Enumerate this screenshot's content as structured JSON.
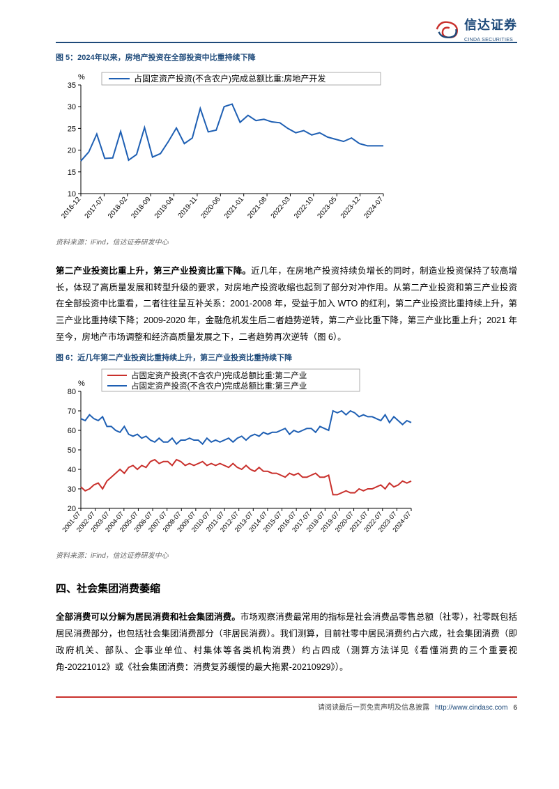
{
  "logo": {
    "cn": "信达证券",
    "en": "CINDA SECURITIES"
  },
  "figure5": {
    "title": "图 5：2024年以来，房地产投资在全部投资中比重持续下降",
    "source": "资料来源：iFind，信达证券研发中心",
    "type": "line",
    "legend_label": "占固定资产投资(不含农户)完成总额比重:房地产开发",
    "legend_color": "#1e5fb3",
    "y_label": "%",
    "ylim": [
      10,
      35
    ],
    "ytick_step": 5,
    "x_categories": [
      "2016-12",
      "2017-07",
      "2018-02",
      "2018-09",
      "2019-04",
      "2019-11",
      "2020-06",
      "2021-01",
      "2021-08",
      "2022-03",
      "2022-10",
      "2023-05",
      "2023-12",
      "2024-07"
    ],
    "line_color": "#1e5fb3",
    "line_width": 2,
    "background_color": "#ffffff",
    "grid_color": "#999999",
    "series": [
      17.5,
      19.6,
      23.7,
      18.1,
      18.2,
      24.3,
      17.7,
      19.0,
      25.2,
      18.4,
      19.2,
      22.0,
      25.1,
      21.5,
      22.8,
      29.6,
      24.2,
      24.6,
      30.0,
      30.6,
      26.4,
      28.0,
      26.8,
      27.1,
      26.5,
      26.3,
      25.0,
      24.0,
      24.5,
      23.5,
      24.0,
      23.0,
      22.5,
      22.0,
      22.8,
      21.5,
      21.0,
      21.0,
      21.0
    ]
  },
  "para1_bold": "第二产业投资比重上升，第三产业投资比重下降。",
  "para1_rest": "近几年，在房地产投资持续负增长的同时，制造业投资保持了较高增长，体现了高质量发展和转型升级的要求，对房地产投资收缩也起到了部分对冲作用。从第二产业投资和第三产业投资在全部投资中比重看，二者往往呈互补关系：2001-2008 年，受益于加入 WTO 的红利，第二产业投资比重持续上升，第三产业比重持续下降；2009-2020 年，金融危机发生后二者趋势逆转，第二产业比重下降，第三产业比重上升；2021 年至今，房地产市场调整和经济高质量发展之下，二者趋势再次逆转（图 6）。",
  "figure6": {
    "title": "图 6：近几年第二产业投资比重持续上升，第三产业投资比重持续下降",
    "source": "资料来源：iFind，信达证券研发中心",
    "type": "line",
    "legend1_label": "占固定资产投资(不含农户)完成总额比重:第二产业",
    "legend2_label": "占固定资产投资(不含农户)完成总额比重:第三产业",
    "legend1_color": "#c9302c",
    "legend2_color": "#1e5fb3",
    "y_label": "%",
    "ylim": [
      20,
      80
    ],
    "ytick_step": 10,
    "x_categories": [
      "2001-07",
      "2002-07",
      "2003-07",
      "2004-07",
      "2005-07",
      "2006-07",
      "2007-07",
      "2008-07",
      "2009-07",
      "2010-07",
      "2011-07",
      "2012-07",
      "2013-07",
      "2014-07",
      "2015-07",
      "2016-07",
      "2017-07",
      "2018-07",
      "2019-07",
      "2020-07",
      "2021-07",
      "2022-07",
      "2023-07",
      "2024-07"
    ],
    "line_width": 2,
    "background_color": "#ffffff",
    "series_red": [
      31,
      29,
      30,
      32,
      33,
      30,
      34,
      36,
      38,
      40,
      38,
      41,
      42,
      40,
      42,
      41,
      44,
      45,
      43,
      44,
      44,
      42,
      45,
      44,
      42,
      43,
      42,
      43,
      44,
      42,
      43,
      42,
      43,
      42,
      41,
      43,
      41,
      40,
      42,
      40,
      39,
      41,
      39,
      39,
      38,
      38,
      37,
      36,
      38,
      37,
      38,
      36,
      36,
      37,
      38,
      36,
      36,
      37,
      27,
      27,
      28,
      29,
      28,
      28,
      30,
      29,
      30,
      30,
      31,
      32,
      30,
      33,
      31,
      32,
      34,
      33,
      34
    ],
    "series_blue": [
      66,
      65,
      68,
      66,
      65,
      67,
      62,
      62,
      60,
      59,
      62,
      58,
      57,
      58,
      56,
      57,
      55,
      54,
      56,
      54,
      54,
      56,
      53,
      55,
      55,
      56,
      55,
      55,
      53,
      56,
      54,
      55,
      54,
      55,
      56,
      54,
      56,
      57,
      55,
      57,
      58,
      57,
      59,
      58,
      59,
      59,
      60,
      61,
      58,
      60,
      59,
      60,
      61,
      61,
      59,
      62,
      61,
      60,
      70,
      69,
      70,
      68,
      70,
      69,
      67,
      68,
      67,
      67,
      66,
      65,
      68,
      64,
      67,
      65,
      63,
      65,
      64
    ]
  },
  "section4_title": "四、社会集团消费萎缩",
  "para2_bold": "全部消费可以分解为居民消费和社会集团消费。",
  "para2_rest": "市场观察消费最常用的指标是社会消费品零售总额（社零），社零既包括居民消费部分，也包括社会集团消费部分（非居民消费）。我们测算，目前社零中居民消费约占六成，社会集团消费（即政府机关、部队、企事业单位、村集体等各类机构消费）约占四成（测算方法详见《看懂消费的三个重要视角-20221012》或《社会集团消费：消费复苏缓慢的最大拖累-20210929》）。",
  "footer": {
    "text": "请阅读最后一页免责声明及信息披露",
    "url": "http://www.cindasc.com",
    "page": "6"
  }
}
